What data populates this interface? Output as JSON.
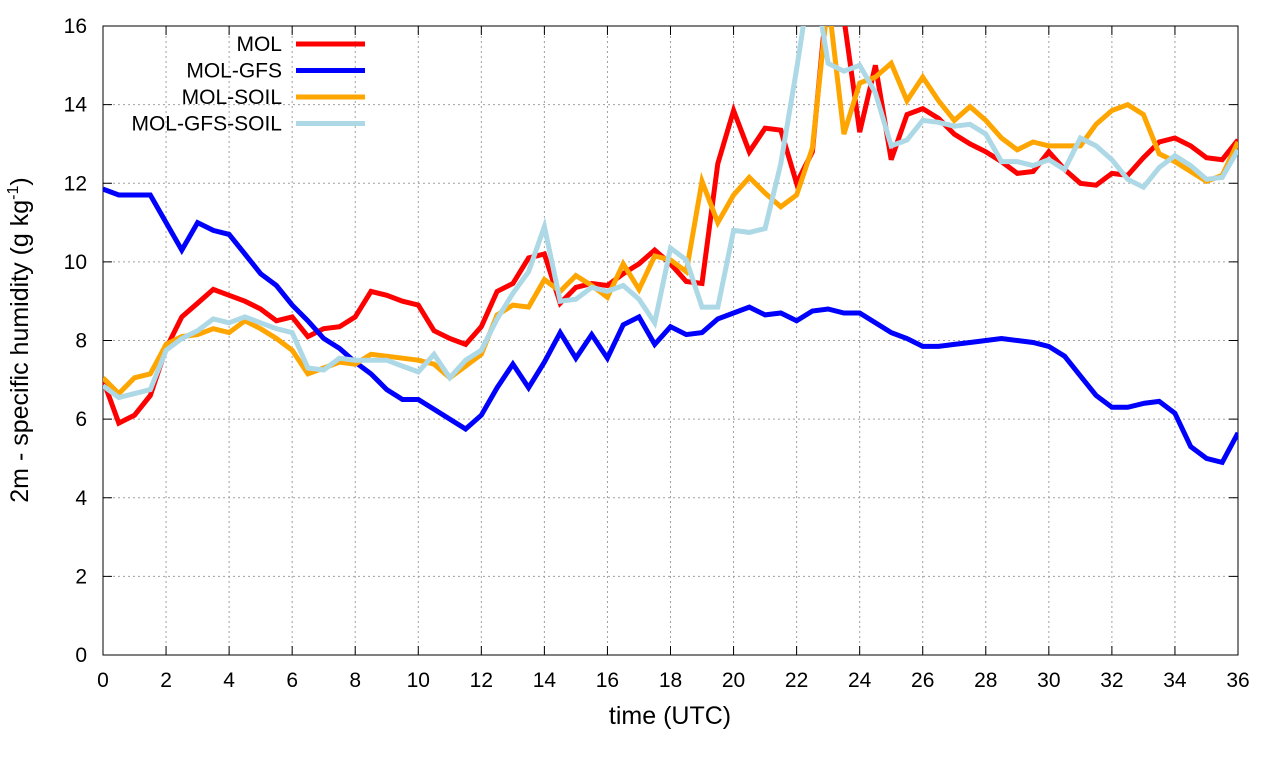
{
  "chart_data": {
    "type": "line",
    "title": "",
    "xlabel": "time (UTC)",
    "ylabel_main": "2m - specific humidity (g kg",
    "ylabel_sup": "-1",
    "ylabel_close": ")",
    "xlim": [
      0,
      36
    ],
    "ylim": [
      0,
      16
    ],
    "xticks": [
      0,
      2,
      4,
      6,
      8,
      10,
      12,
      14,
      16,
      18,
      20,
      22,
      24,
      26,
      28,
      30,
      32,
      34,
      36
    ],
    "yticks": [
      0,
      2,
      4,
      6,
      8,
      10,
      12,
      14,
      16
    ],
    "grid": true,
    "legend_position": "top-left",
    "x": [
      0,
      0.5,
      1,
      1.5,
      2,
      2.5,
      3,
      3.5,
      4,
      4.5,
      5,
      5.5,
      6,
      6.5,
      7,
      7.5,
      8,
      8.5,
      9,
      9.5,
      10,
      10.5,
      11,
      11.5,
      12,
      12.5,
      13,
      13.5,
      14,
      14.5,
      15,
      15.5,
      16,
      16.5,
      17,
      17.5,
      18,
      18.5,
      19,
      19.5,
      20,
      20.5,
      21,
      21.5,
      22,
      22.5,
      23,
      23.5,
      24,
      24.5,
      25,
      25.5,
      26,
      26.5,
      27,
      27.5,
      28,
      28.5,
      29,
      29.5,
      30,
      30.5,
      31,
      31.5,
      32,
      32.5,
      33,
      33.5,
      34,
      34.5,
      35,
      35.5,
      36
    ],
    "series": [
      {
        "name": "MOL",
        "color": "#ff0000",
        "values": [
          7.0,
          5.9,
          6.1,
          6.6,
          7.8,
          8.6,
          8.95,
          9.3,
          9.15,
          9.0,
          8.8,
          8.5,
          8.6,
          8.1,
          8.3,
          8.35,
          8.6,
          9.25,
          9.15,
          9.0,
          8.9,
          8.25,
          8.05,
          7.9,
          8.35,
          9.25,
          9.45,
          10.1,
          10.2,
          8.95,
          9.35,
          9.45,
          9.4,
          9.7,
          9.95,
          10.3,
          9.95,
          9.5,
          9.45,
          12.5,
          13.85,
          12.8,
          13.4,
          13.35,
          12.0,
          12.8,
          17.0,
          16.2,
          13.3,
          15.0,
          12.6,
          13.75,
          13.9,
          13.65,
          13.25,
          13.0,
          12.8,
          12.55,
          12.25,
          12.3,
          12.8,
          12.35,
          12.0,
          11.95,
          12.25,
          12.2,
          12.65,
          13.05,
          13.15,
          12.95,
          12.65,
          12.6,
          13.1
        ]
      },
      {
        "name": "MOL-GFS",
        "color": "#0000ff",
        "values": [
          11.85,
          11.7,
          11.7,
          11.7,
          11.0,
          10.3,
          11.0,
          10.8,
          10.7,
          10.2,
          9.7,
          9.4,
          8.9,
          8.5,
          8.05,
          7.8,
          7.45,
          7.15,
          6.75,
          6.5,
          6.5,
          6.25,
          6.0,
          5.75,
          6.1,
          6.8,
          7.4,
          6.8,
          7.45,
          8.2,
          7.55,
          8.15,
          7.55,
          8.4,
          8.6,
          7.9,
          8.35,
          8.15,
          8.2,
          8.55,
          8.7,
          8.85,
          8.65,
          8.7,
          8.5,
          8.75,
          8.8,
          8.7,
          8.7,
          8.45,
          8.2,
          8.05,
          7.85,
          7.85,
          7.9,
          7.95,
          8.0,
          8.05,
          8.0,
          7.95,
          7.85,
          7.6,
          7.1,
          6.6,
          6.3,
          6.3,
          6.4,
          6.45,
          6.15,
          5.3,
          5.0,
          4.9,
          5.65
        ]
      },
      {
        "name": "MOL-SOIL",
        "color": "#ffa500",
        "values": [
          7.05,
          6.65,
          7.05,
          7.15,
          7.9,
          8.1,
          8.15,
          8.3,
          8.2,
          8.5,
          8.3,
          8.05,
          7.75,
          7.15,
          7.3,
          7.45,
          7.4,
          7.65,
          7.6,
          7.55,
          7.5,
          7.4,
          7.05,
          7.35,
          7.65,
          8.65,
          8.9,
          8.85,
          9.55,
          9.25,
          9.65,
          9.4,
          9.1,
          9.95,
          9.3,
          10.15,
          10.05,
          9.75,
          12.05,
          11.0,
          11.7,
          12.15,
          11.75,
          11.4,
          11.7,
          12.9,
          16.7,
          13.25,
          14.55,
          14.7,
          15.05,
          14.1,
          14.7,
          14.1,
          13.6,
          13.95,
          13.6,
          13.15,
          12.85,
          13.05,
          12.95,
          12.95,
          12.95,
          13.5,
          13.85,
          14.0,
          13.75,
          12.75,
          12.55,
          12.3,
          12.05,
          12.2,
          13.05
        ]
      },
      {
        "name": "MOL-GFS-SOIL",
        "color": "#add8e6",
        "values": [
          6.85,
          6.55,
          6.65,
          6.75,
          7.75,
          8.05,
          8.25,
          8.55,
          8.45,
          8.6,
          8.45,
          8.3,
          8.2,
          7.3,
          7.25,
          7.55,
          7.5,
          7.5,
          7.5,
          7.35,
          7.2,
          7.65,
          7.05,
          7.5,
          7.75,
          8.55,
          9.2,
          9.75,
          10.9,
          9.0,
          9.05,
          9.35,
          9.25,
          9.4,
          9.05,
          8.45,
          10.35,
          10.05,
          8.85,
          8.85,
          10.8,
          10.75,
          10.85,
          12.5,
          14.9,
          17.5,
          15.05,
          14.85,
          15.0,
          14.3,
          12.95,
          13.1,
          13.6,
          13.55,
          13.45,
          13.5,
          13.25,
          12.55,
          12.55,
          12.45,
          12.6,
          12.35,
          13.15,
          12.95,
          12.6,
          12.1,
          11.9,
          12.4,
          12.7,
          12.45,
          12.1,
          12.15,
          12.85
        ]
      }
    ]
  }
}
